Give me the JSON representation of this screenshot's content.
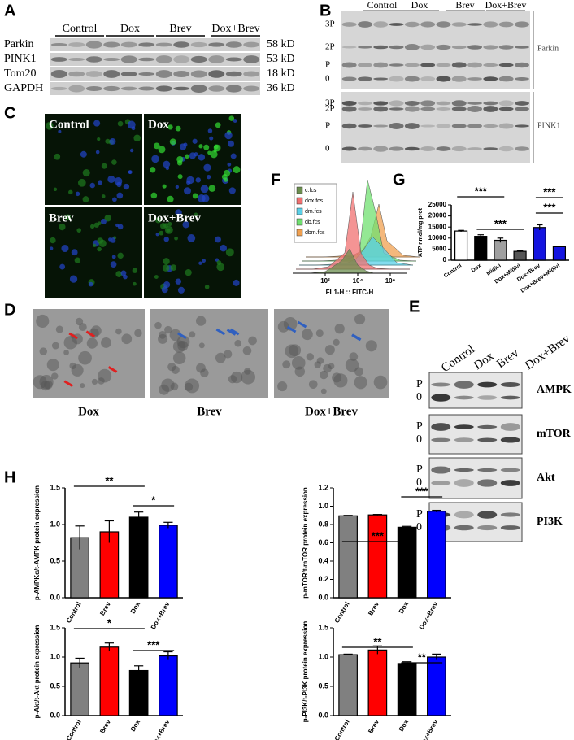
{
  "panels": {
    "A": {
      "label": "A",
      "groups": [
        "Control",
        "Dox",
        "Brev",
        "Dox+Brev"
      ],
      "rows": [
        {
          "name": "Parkin",
          "size": "58 kD"
        },
        {
          "name": "PINK1",
          "size": "53 kD"
        },
        {
          "name": "Tom20",
          "size": "18 kD"
        },
        {
          "name": "GAPDH",
          "size": "36 kD"
        }
      ]
    },
    "B": {
      "label": "B",
      "groups": [
        "Control",
        "Dox",
        "Brev",
        "Dox+Brev"
      ],
      "blots": [
        {
          "name": "Parkin",
          "bands": [
            "3P",
            "2P",
            "P",
            "0"
          ]
        },
        {
          "name": "PINK1",
          "bands": [
            "3P",
            "2P",
            "P",
            "0"
          ]
        }
      ]
    },
    "C": {
      "label": "C",
      "images": [
        "Control",
        "Dox",
        "Brev",
        "Dox+Brev"
      ]
    },
    "D": {
      "label": "D",
      "images": [
        "Dox",
        "Brev",
        "Dox+Brev"
      ]
    },
    "E": {
      "label": "E",
      "groups": [
        "Control",
        "Dox",
        "Brev",
        "Dox+Brev"
      ],
      "rows": [
        {
          "name": "AMPK",
          "states": [
            "P",
            "0"
          ]
        },
        {
          "name": "mTOR",
          "states": [
            "P",
            "0"
          ]
        },
        {
          "name": "Akt",
          "states": [
            "P",
            "0"
          ]
        },
        {
          "name": "PI3K",
          "states": [
            "P",
            "0"
          ]
        }
      ]
    },
    "F": {
      "label": "F"
    },
    "G": {
      "label": "G"
    },
    "H": {
      "label": "H"
    }
  },
  "chart_data": [
    {
      "type": "density",
      "xlabel": "FL1-H :: FITC-H",
      "xlog": true,
      "xlim": [
        1,
        10000000
      ],
      "xticks": [
        {
          "value": 100,
          "label": "10²"
        },
        {
          "value": 10000,
          "label": "10⁴"
        },
        {
          "value": 1000000,
          "label": "10⁶"
        }
      ],
      "x": [
        1,
        10,
        100,
        1000,
        3162,
        10000,
        31623,
        100000,
        1000000,
        10000000
      ],
      "series": [
        {
          "name": "c.fcs",
          "color": "#6b8e4e",
          "values": [
            0,
            0,
            2,
            15,
            30,
            10,
            3,
            0,
            0,
            0
          ]
        },
        {
          "name": "dox.fcs",
          "color": "#f07070",
          "values": [
            0,
            0,
            3,
            20,
            95,
            20,
            5,
            1,
            0,
            0
          ]
        },
        {
          "name": "dm.fcs",
          "color": "#5ad0e8",
          "values": [
            0,
            0,
            1,
            3,
            8,
            20,
            35,
            25,
            3,
            0
          ]
        },
        {
          "name": "db.fcs",
          "color": "#70e070",
          "values": [
            0,
            0,
            1,
            4,
            10,
            100,
            60,
            10,
            1,
            0
          ]
        },
        {
          "name": "dbm.fcs",
          "color": "#f0a050",
          "values": [
            0,
            0,
            1,
            3,
            8,
            25,
            65,
            20,
            2,
            0
          ]
        }
      ]
    },
    {
      "type": "bar",
      "ylabel": "ATP nmol/mg prot",
      "categories": [
        "Control",
        "Dox",
        "Midivi",
        "Dox+Midivi",
        "Dox+Brev",
        "Dox+Brev+Midivi"
      ],
      "values": [
        13200,
        10800,
        9000,
        4000,
        14800,
        6100
      ],
      "errors": [
        300,
        700,
        1000,
        400,
        1200,
        200
      ],
      "colors": [
        "#ffffff",
        "#000000",
        "#a0a0a0",
        "#555555",
        "#1414e0",
        "#1414e0"
      ],
      "ylim": [
        0,
        25000
      ],
      "yticks": [
        0,
        5000,
        10000,
        15000,
        20000,
        25000
      ],
      "annotations": [
        "***",
        "***",
        "***",
        "***"
      ]
    },
    {
      "type": "bar",
      "ylabel": "p-AMPKα/t-AMPK protein expression",
      "categories": [
        "Control",
        "Brev",
        "Dox",
        "Dox+Brev"
      ],
      "values": [
        0.82,
        0.9,
        1.1,
        0.99
      ],
      "errors": [
        0.16,
        0.15,
        0.07,
        0.04
      ],
      "colors": [
        "#808080",
        "#ff0000",
        "#000000",
        "#0000ff"
      ],
      "ylim": [
        0,
        1.5
      ],
      "yticks": [
        {
          "value": 0,
          "label": "0.0"
        },
        0.5,
        {
          "value": 1,
          "label": "1.0"
        },
        1.5
      ],
      "annotations": [
        "**",
        "*"
      ]
    },
    {
      "type": "bar",
      "ylabel": "p-mTOR/t-mTOR protein expression",
      "categories": [
        "Control",
        "Brev",
        "Dox",
        "Dox+Brev"
      ],
      "values": [
        0.895,
        0.905,
        0.77,
        0.945
      ],
      "errors": [
        0.005,
        0.005,
        0.01,
        0.01
      ],
      "colors": [
        "#808080",
        "#ff0000",
        "#000000",
        "#0000ff"
      ],
      "ylim": [
        0,
        1.2
      ],
      "yticks": [
        {
          "value": 0,
          "label": "0.0"
        },
        0.2,
        0.4,
        0.6,
        0.8,
        {
          "value": 1,
          "label": "1.0"
        },
        1.2
      ],
      "annotations": [
        "***",
        "***"
      ]
    },
    {
      "type": "bar",
      "ylabel": "p-Akt/t-Akt protein expression",
      "categories": [
        "Control",
        "Brev",
        "Dox",
        "Dox+Brev"
      ],
      "values": [
        0.9,
        1.17,
        0.77,
        1.02
      ],
      "errors": [
        0.08,
        0.07,
        0.08,
        0.07
      ],
      "colors": [
        "#808080",
        "#ff0000",
        "#000000",
        "#0000ff"
      ],
      "ylim": [
        0,
        1.5
      ],
      "yticks": [
        {
          "value": 0,
          "label": "0.0"
        },
        0.5,
        {
          "value": 1,
          "label": "1.0"
        },
        1.5
      ],
      "annotations": [
        "*",
        "***"
      ]
    },
    {
      "type": "bar",
      "ylabel": "p-PI3K/t-PI3K protein expression",
      "categories": [
        "Control",
        "Brev",
        "Dox",
        "Dox+Brev"
      ],
      "values": [
        1.04,
        1.12,
        0.89,
        1.0
      ],
      "errors": [
        0.01,
        0.07,
        0.03,
        0.05
      ],
      "colors": [
        "#808080",
        "#ff0000",
        "#000000",
        "#0000ff"
      ],
      "ylim": [
        0,
        1.5
      ],
      "yticks": [
        {
          "value": 0,
          "label": "0.0"
        },
        0.5,
        {
          "value": 1,
          "label": "1.0"
        },
        1.5
      ],
      "annotations": [
        "**",
        "**"
      ]
    }
  ]
}
